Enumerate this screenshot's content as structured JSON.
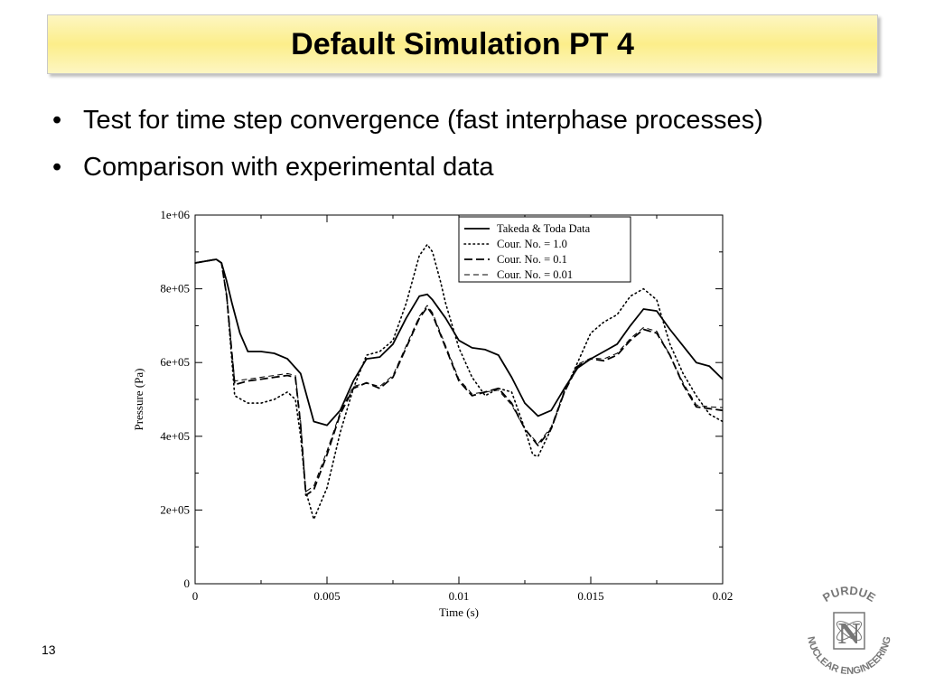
{
  "slide": {
    "title": "Default Simulation PT 4",
    "bullets": [
      "Test for time step convergence (fast interphase processes)",
      "Comparison with experimental data"
    ],
    "number": "13",
    "logo": {
      "top_text": "PURDUE",
      "bottom_text": "NUCLEAR ENGINEERING",
      "monogram": "N"
    }
  },
  "chart_data": {
    "type": "line",
    "xlabel": "Time (s)",
    "ylabel": "Pressure (Pa)",
    "xlim": [
      0,
      0.02
    ],
    "ylim": [
      0,
      1000000
    ],
    "x_ticks": [
      0,
      0.005,
      0.01,
      0.015,
      0.02
    ],
    "x_tick_labels": [
      "0",
      "0.005",
      "0.01",
      "0.015",
      "0.02"
    ],
    "y_ticks": [
      0,
      200000,
      400000,
      600000,
      800000,
      1000000
    ],
    "y_tick_labels": [
      "0",
      "2e+05",
      "4e+05",
      "6e+05",
      "8e+05",
      "1e+06"
    ],
    "grid": false,
    "legend_position": "top-right",
    "series": [
      {
        "name": "Takeda & Toda Data",
        "style": "solid",
        "x": [
          0,
          0.0008,
          0.001,
          0.0012,
          0.0014,
          0.0017,
          0.002,
          0.0025,
          0.003,
          0.0035,
          0.004,
          0.0045,
          0.005,
          0.0055,
          0.006,
          0.0065,
          0.007,
          0.0075,
          0.008,
          0.0085,
          0.0088,
          0.009,
          0.0095,
          0.01,
          0.0105,
          0.011,
          0.0115,
          0.012,
          0.0125,
          0.013,
          0.0135,
          0.014,
          0.0145,
          0.015,
          0.0155,
          0.016,
          0.0165,
          0.017,
          0.0175,
          0.018,
          0.0185,
          0.019,
          0.0195,
          0.02
        ],
        "values": [
          870000,
          880000,
          870000,
          820000,
          760000,
          680000,
          630000,
          630000,
          625000,
          610000,
          570000,
          440000,
          430000,
          470000,
          550000,
          610000,
          615000,
          650000,
          720000,
          780000,
          785000,
          770000,
          720000,
          660000,
          640000,
          635000,
          620000,
          560000,
          490000,
          455000,
          470000,
          530000,
          585000,
          610000,
          630000,
          650000,
          700000,
          745000,
          740000,
          690000,
          645000,
          600000,
          590000,
          555000
        ]
      },
      {
        "name": "Cour. No. = 1.0",
        "style": "dotted",
        "x": [
          0,
          0.0008,
          0.001,
          0.0012,
          0.0015,
          0.002,
          0.0025,
          0.003,
          0.0035,
          0.0038,
          0.004,
          0.0042,
          0.0045,
          0.005,
          0.0055,
          0.006,
          0.0065,
          0.007,
          0.0075,
          0.008,
          0.0085,
          0.0088,
          0.009,
          0.0093,
          0.0095,
          0.01,
          0.0105,
          0.011,
          0.0115,
          0.012,
          0.0125,
          0.0128,
          0.013,
          0.0135,
          0.014,
          0.0145,
          0.015,
          0.0155,
          0.016,
          0.0165,
          0.017,
          0.0175,
          0.018,
          0.0185,
          0.019,
          0.0195,
          0.02
        ],
        "values": [
          870000,
          880000,
          870000,
          780000,
          510000,
          490000,
          490000,
          500000,
          520000,
          500000,
          400000,
          250000,
          175000,
          260000,
          410000,
          530000,
          620000,
          630000,
          660000,
          760000,
          890000,
          920000,
          900000,
          820000,
          760000,
          640000,
          560000,
          510000,
          530000,
          520000,
          420000,
          350000,
          345000,
          420000,
          520000,
          600000,
          680000,
          710000,
          730000,
          780000,
          800000,
          770000,
          650000,
          570000,
          510000,
          460000,
          440000
        ]
      },
      {
        "name": "Cour. No. = 0.1",
        "style": "dashed",
        "x": [
          0,
          0.0008,
          0.001,
          0.0012,
          0.0015,
          0.002,
          0.0025,
          0.003,
          0.0035,
          0.0038,
          0.004,
          0.0042,
          0.0045,
          0.005,
          0.0055,
          0.006,
          0.0065,
          0.007,
          0.0075,
          0.008,
          0.0085,
          0.0088,
          0.009,
          0.0095,
          0.01,
          0.0105,
          0.011,
          0.0115,
          0.012,
          0.0125,
          0.013,
          0.0135,
          0.014,
          0.0145,
          0.015,
          0.0155,
          0.016,
          0.0165,
          0.017,
          0.0175,
          0.018,
          0.0185,
          0.019,
          0.0195,
          0.02
        ],
        "values": [
          870000,
          880000,
          870000,
          780000,
          540000,
          550000,
          555000,
          560000,
          565000,
          560000,
          430000,
          240000,
          255000,
          350000,
          460000,
          530000,
          545000,
          530000,
          560000,
          640000,
          720000,
          750000,
          730000,
          640000,
          550000,
          510000,
          520000,
          530000,
          490000,
          420000,
          375000,
          420000,
          520000,
          590000,
          610000,
          605000,
          620000,
          660000,
          690000,
          680000,
          620000,
          540000,
          480000,
          475000,
          470000
        ]
      },
      {
        "name": "Cour. No. = 0.01",
        "style": "dashed-thin",
        "x": [
          0,
          0.0008,
          0.001,
          0.0012,
          0.0015,
          0.002,
          0.0025,
          0.003,
          0.0035,
          0.0038,
          0.004,
          0.0042,
          0.0045,
          0.005,
          0.0055,
          0.006,
          0.0065,
          0.007,
          0.0075,
          0.008,
          0.0085,
          0.0088,
          0.009,
          0.0095,
          0.01,
          0.0105,
          0.011,
          0.0115,
          0.012,
          0.0125,
          0.013,
          0.0135,
          0.014,
          0.0145,
          0.015,
          0.0155,
          0.016,
          0.0165,
          0.017,
          0.0175,
          0.018,
          0.0185,
          0.019,
          0.0195,
          0.02
        ],
        "values": [
          870000,
          880000,
          870000,
          780000,
          550000,
          555000,
          560000,
          565000,
          570000,
          565000,
          440000,
          250000,
          265000,
          360000,
          465000,
          535000,
          545000,
          535000,
          565000,
          645000,
          725000,
          755000,
          735000,
          645000,
          555000,
          515000,
          520000,
          525000,
          485000,
          420000,
          380000,
          425000,
          525000,
          595000,
          612000,
          610000,
          625000,
          665000,
          695000,
          685000,
          620000,
          545000,
          485000,
          480000,
          478000
        ]
      }
    ]
  }
}
